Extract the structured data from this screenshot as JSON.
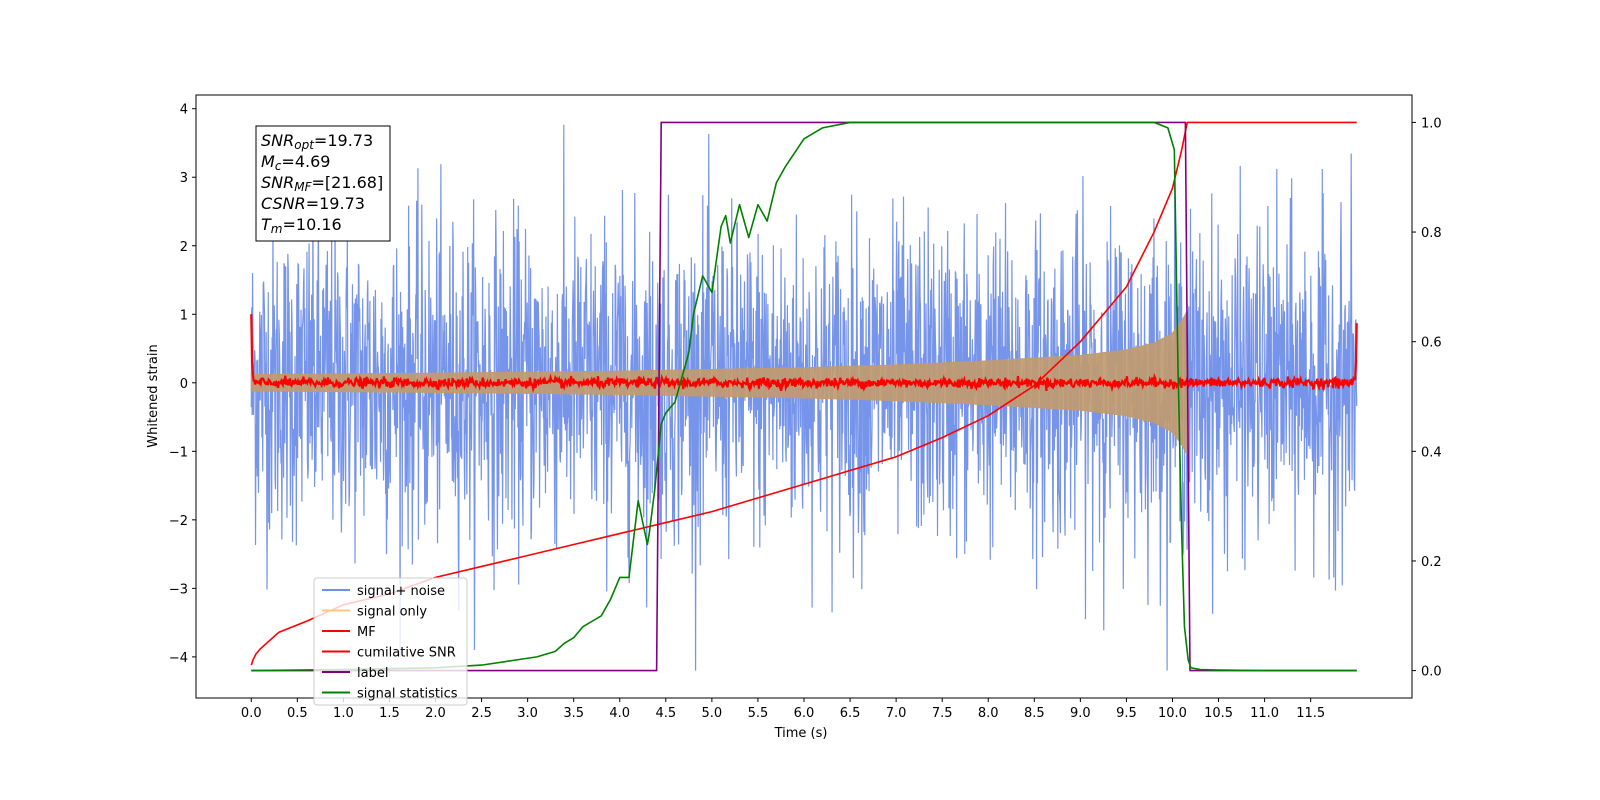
{
  "chart_data": {
    "type": "line",
    "xlabel": "Time (s)",
    "ylabel": "Whitened strain",
    "xlim": [
      -0.6,
      12.6
    ],
    "ylim_left": [
      -4.6,
      4.2
    ],
    "ylim_right": [
      -0.05,
      1.05
    ],
    "x_ticks": [
      "0.0",
      "0.5",
      "1.0",
      "1.5",
      "2.0",
      "2.5",
      "3.0",
      "3.5",
      "4.0",
      "4.5",
      "5.0",
      "5.5",
      "6.0",
      "6.5",
      "7.0",
      "7.5",
      "8.0",
      "8.5",
      "9.0",
      "9.5",
      "10.0",
      "10.5",
      "11.0",
      "11.5"
    ],
    "y_left_ticks": [
      "−4",
      "−3",
      "−2",
      "−1",
      "0",
      "1",
      "2",
      "3",
      "4"
    ],
    "y_right_ticks": [
      "0.0",
      "0.2",
      "0.4",
      "0.6",
      "0.8",
      "1.0"
    ],
    "annotation": {
      "lines": [
        {
          "sym": "SNR",
          "sub": "opt",
          "val": "=19.73"
        },
        {
          "sym": "M",
          "sub": "c",
          "val": "=4.69"
        },
        {
          "sym": "SNR",
          "sub": "MF",
          "val": "=[21.68]"
        },
        {
          "sym": "CSNR",
          "sub": "",
          "val": "=19.73"
        },
        {
          "sym": "T",
          "sub": "m",
          "val": "=10.16"
        }
      ]
    },
    "legend_position": "lower-left",
    "series": [
      {
        "name": "signal+ noise",
        "color": "#6f8ee8",
        "axis": "left",
        "kind": "noise",
        "x_range": [
          0.0,
          12.0
        ],
        "amplitude_range": [
          -4.2,
          3.85
        ]
      },
      {
        "name": "signal only",
        "color": "#fdc87a",
        "axis": "left",
        "kind": "chirp",
        "x_range": [
          0.0,
          10.16
        ],
        "envelope": {
          "x": [
            0.0,
            2.0,
            4.0,
            6.0,
            7.0,
            8.0,
            9.0,
            9.5,
            9.8,
            10.0,
            10.1,
            10.16
          ],
          "amp": [
            0.12,
            0.14,
            0.17,
            0.22,
            0.26,
            0.32,
            0.4,
            0.48,
            0.58,
            0.72,
            0.9,
            1.05
          ]
        }
      },
      {
        "name": "MF",
        "color": "#ff0000",
        "axis": "left",
        "kind": "mf",
        "x_range": [
          0.0,
          12.0
        ],
        "edge_values": [
          1.0,
          0.87
        ]
      },
      {
        "name": "cumilative SNR",
        "color": "#ff0000",
        "axis": "right",
        "x": [
          0.0,
          0.02,
          0.05,
          0.1,
          0.3,
          0.6,
          1.0,
          1.5,
          2.0,
          2.5,
          3.0,
          3.5,
          4.0,
          4.5,
          5.0,
          5.5,
          6.0,
          6.5,
          7.0,
          7.5,
          8.0,
          8.5,
          9.0,
          9.5,
          9.8,
          10.0,
          10.1,
          10.16,
          10.2,
          12.0
        ],
        "values": [
          0.01,
          0.02,
          0.03,
          0.04,
          0.07,
          0.09,
          0.12,
          0.14,
          0.17,
          0.19,
          0.21,
          0.23,
          0.25,
          0.27,
          0.29,
          0.315,
          0.34,
          0.365,
          0.39,
          0.425,
          0.465,
          0.52,
          0.6,
          0.7,
          0.8,
          0.88,
          0.95,
          1.0,
          1.0,
          1.0
        ]
      },
      {
        "name": "label",
        "color": "#800080",
        "axis": "right",
        "x": [
          0.0,
          4.4,
          4.45,
          10.14,
          10.19,
          12.0
        ],
        "values": [
          0.0,
          0.0,
          1.0,
          1.0,
          0.0,
          0.0
        ]
      },
      {
        "name": "signal statistics",
        "color": "#008000",
        "axis": "right",
        "x": [
          0.0,
          1.0,
          2.0,
          2.5,
          2.9,
          3.1,
          3.3,
          3.4,
          3.5,
          3.6,
          3.7,
          3.8,
          3.9,
          4.0,
          4.1,
          4.2,
          4.3,
          4.32,
          4.38,
          4.45,
          4.5,
          4.55,
          4.6,
          4.65,
          4.7,
          4.75,
          4.8,
          4.9,
          5.0,
          5.1,
          5.15,
          5.2,
          5.3,
          5.4,
          5.5,
          5.6,
          5.7,
          5.8,
          6.0,
          6.2,
          6.5,
          7.0,
          7.5,
          8.0,
          8.5,
          9.0,
          9.5,
          9.8,
          9.95,
          10.02,
          10.06,
          10.1,
          10.13,
          10.17,
          10.2,
          10.3,
          10.5,
          11.0,
          11.5,
          12.0
        ],
        "values": [
          0.0,
          0.002,
          0.005,
          0.01,
          0.02,
          0.025,
          0.035,
          0.05,
          0.06,
          0.08,
          0.09,
          0.1,
          0.13,
          0.17,
          0.17,
          0.31,
          0.23,
          0.25,
          0.33,
          0.45,
          0.47,
          0.48,
          0.49,
          0.52,
          0.55,
          0.58,
          0.65,
          0.72,
          0.69,
          0.81,
          0.83,
          0.78,
          0.85,
          0.79,
          0.85,
          0.82,
          0.89,
          0.92,
          0.97,
          0.99,
          1.0,
          1.0,
          1.0,
          1.0,
          1.0,
          1.0,
          1.0,
          1.0,
          0.99,
          0.95,
          0.55,
          0.25,
          0.08,
          0.02,
          0.005,
          0.002,
          0.001,
          0.0,
          0.0,
          0.0
        ]
      }
    ]
  }
}
